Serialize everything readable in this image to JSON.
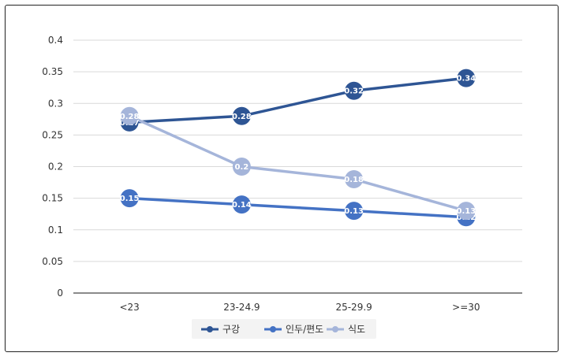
{
  "chart_data": {
    "type": "line",
    "categories": [
      "<23",
      "23-24.9",
      "25-29.9",
      ">=30"
    ],
    "series": [
      {
        "name": "구강",
        "values": [
          0.27,
          0.28,
          0.32,
          0.34
        ],
        "color": "#2E5594"
      },
      {
        "name": "인두/편도",
        "values": [
          0.15,
          0.14,
          0.13,
          0.12
        ],
        "color": "#4472C4"
      },
      {
        "name": "식도",
        "values": [
          0.28,
          0.2,
          0.18,
          0.13
        ],
        "color": "#A5B5DA"
      }
    ],
    "ylim": [
      0,
      0.4
    ],
    "yticks": [
      "0",
      "0.05",
      "0.1",
      "0.15",
      "0.2",
      "0.25",
      "0.3",
      "0.35",
      "0.4"
    ],
    "grid": true,
    "legend": "bottom"
  }
}
